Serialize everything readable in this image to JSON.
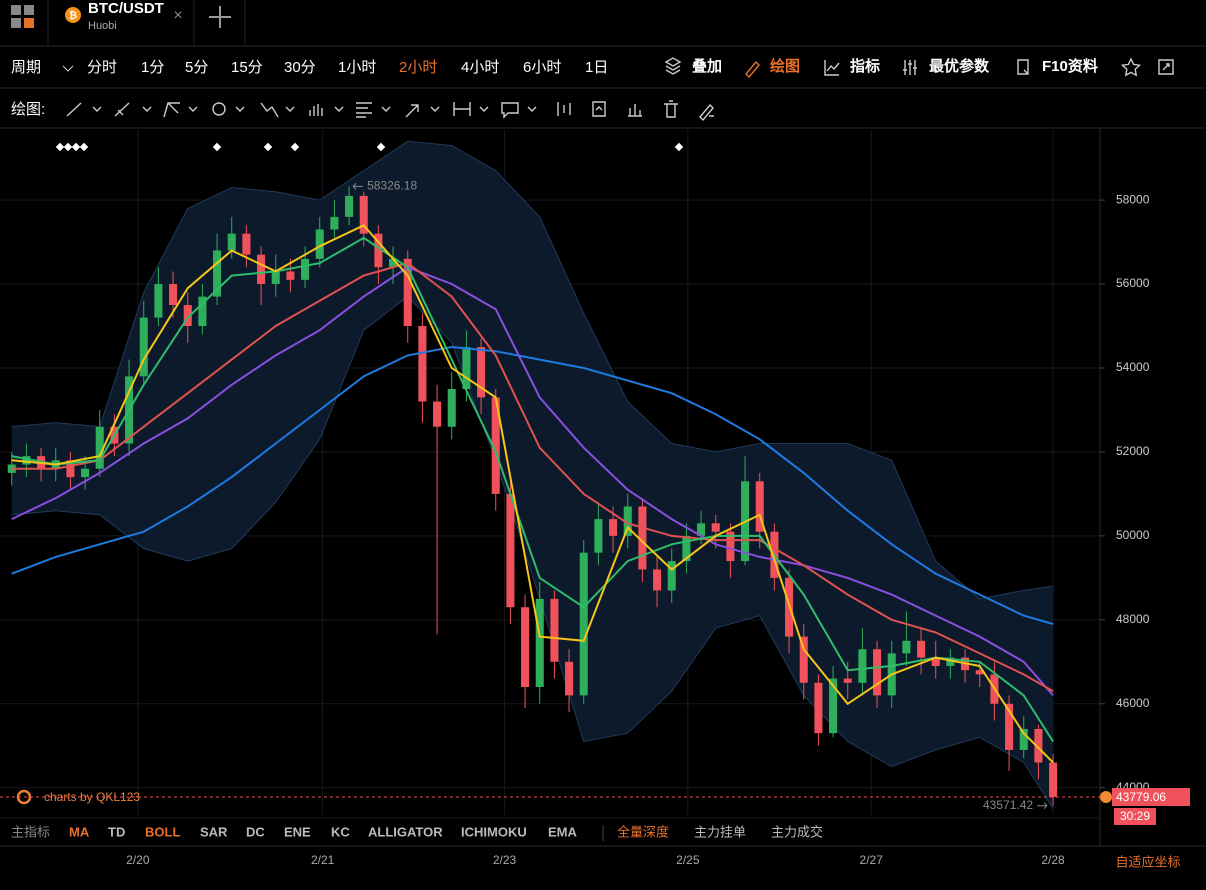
{
  "header": {
    "tab_title": "BTC/USDT",
    "tab_subtitle": "Huobi"
  },
  "toolbar": {
    "period_label": "周期",
    "periods": [
      "分时",
      "1分",
      "5分",
      "15分",
      "30分",
      "1小时",
      "2小时",
      "4小时",
      "6小时",
      "1日"
    ],
    "active_period": 6,
    "tools": [
      "叠加",
      "绘图",
      "指标",
      "最优参数",
      "F10资料"
    ],
    "active_tool": 1
  },
  "drawing_label": "绘图:",
  "indicator_bar": {
    "label": "主指标",
    "items": [
      "MA",
      "TD",
      "BOLL",
      "SAR",
      "DC",
      "ENE",
      "KC",
      "ALLIGATOR",
      "ICHIMOKU",
      "EMA"
    ],
    "active": [
      0,
      2
    ],
    "extra": [
      "全量深度",
      "主力挂单",
      "主力成交"
    ],
    "extra_active": 0
  },
  "chart_data": {
    "type": "candlestick",
    "watermark": "charts by QKL123",
    "countdown": "30:29",
    "axis_button": "自适应坐标",
    "xlim": [
      -0.8,
      74.2
    ],
    "xticks": [
      {
        "value": 8.6,
        "label": "2/20"
      },
      {
        "value": 21.2,
        "label": "2/21"
      },
      {
        "value": 33.6,
        "label": "2/23"
      },
      {
        "value": 46.1,
        "label": "2/25"
      },
      {
        "value": 58.6,
        "label": "2/27"
      },
      {
        "value": 71,
        "label": "2/28"
      }
    ],
    "ylim": [
      43350,
      59670
    ],
    "yticks": [
      44000,
      46000,
      48000,
      50000,
      52000,
      54000,
      56000,
      58000
    ],
    "grid": true,
    "up_color": "#2fae5c",
    "down_color": "#f0515a",
    "candles": {
      "x": [
        0,
        1,
        2,
        3,
        4,
        5,
        6,
        7,
        8,
        9,
        10,
        11,
        12,
        13,
        14,
        15,
        16,
        17,
        18,
        19,
        20,
        21,
        22,
        23,
        24,
        25,
        26,
        27,
        28,
        29,
        30,
        31,
        32,
        33,
        34,
        35,
        36,
        37,
        38,
        39,
        40,
        41,
        42,
        43,
        44,
        45,
        46,
        47,
        48,
        49,
        50,
        51,
        52,
        53,
        54,
        55,
        56,
        57,
        58,
        59,
        60,
        61,
        62,
        63,
        64,
        65,
        66,
        67,
        68,
        69,
        70,
        71
      ],
      "open": [
        51500,
        51700,
        51900,
        51600,
        51800,
        51400,
        51600,
        52600,
        52200,
        53800,
        55200,
        56000,
        55500,
        55000,
        55700,
        56800,
        57200,
        56700,
        56000,
        56300,
        56100,
        56600,
        57300,
        57600,
        58100,
        57200,
        56400,
        56600,
        55000,
        53200,
        52600,
        53500,
        54500,
        53300,
        51000,
        48300,
        46400,
        48500,
        47000,
        46200,
        49600,
        50400,
        50000,
        50700,
        49200,
        48700,
        49400,
        50000,
        50300,
        50100,
        49400,
        51300,
        50100,
        49000,
        47600,
        46500,
        45300,
        46600,
        46500,
        47300,
        46200,
        47200,
        47500,
        47100,
        46900,
        47100,
        46800,
        46700,
        46000,
        44900,
        45400,
        44600
      ],
      "high": [
        52000,
        52200,
        52100,
        52100,
        52000,
        51900,
        53000,
        52900,
        54200,
        55600,
        56400,
        56300,
        55800,
        56000,
        57200,
        57600,
        57400,
        56900,
        56700,
        56600,
        56900,
        57600,
        58000,
        58326.18,
        58200,
        57400,
        56900,
        56800,
        55300,
        53600,
        53900,
        54900,
        54700,
        53500,
        51300,
        48600,
        48900,
        48700,
        47300,
        49900,
        50800,
        50700,
        51000,
        50900,
        49500,
        49700,
        50300,
        50600,
        50500,
        50300,
        51900,
        51500,
        50300,
        49200,
        47900,
        46700,
        46900,
        47000,
        47800,
        47500,
        47500,
        48200,
        47800,
        47500,
        47300,
        47300,
        47000,
        47000,
        46200,
        45700,
        45500,
        44800
      ],
      "low": [
        51200,
        51400,
        51300,
        51300,
        51100,
        51100,
        51400,
        51900,
        51900,
        53600,
        55000,
        55200,
        54600,
        54800,
        55500,
        56600,
        56400,
        55500,
        55700,
        55800,
        55900,
        56400,
        57100,
        57400,
        56900,
        56000,
        56000,
        54600,
        52700,
        47650,
        52300,
        53200,
        52900,
        50600,
        47900,
        45900,
        46000,
        46600,
        45800,
        46000,
        49300,
        49600,
        49700,
        48900,
        48300,
        48400,
        49100,
        49800,
        49700,
        49000,
        49300,
        49700,
        48700,
        47200,
        46100,
        45000,
        45200,
        46100,
        46200,
        45900,
        45900,
        46900,
        46700,
        46600,
        46600,
        46500,
        46400,
        45600,
        44400,
        44700,
        44200,
        43571.42
      ],
      "close": [
        51700,
        51900,
        51600,
        51800,
        51400,
        51600,
        52600,
        52200,
        53800,
        55200,
        56000,
        55500,
        55000,
        55700,
        56800,
        57200,
        56700,
        56000,
        56300,
        56100,
        56600,
        57300,
        57600,
        58100,
        57200,
        56400,
        56600,
        55000,
        53200,
        52600,
        53500,
        54500,
        53300,
        51000,
        48300,
        46400,
        48500,
        47000,
        46200,
        49600,
        50400,
        50000,
        50700,
        49200,
        48700,
        49400,
        50000,
        50300,
        50100,
        49400,
        51300,
        50100,
        49000,
        47600,
        46500,
        45300,
        46600,
        46500,
        47300,
        46200,
        47200,
        47500,
        47100,
        46900,
        47100,
        46800,
        46700,
        46000,
        44900,
        45400,
        44600,
        43779.06
      ]
    },
    "x": [
      0,
      3,
      6,
      9,
      12,
      15,
      18,
      21,
      24,
      27,
      30,
      33,
      36,
      39,
      42,
      45,
      48,
      51,
      54,
      57,
      60,
      63,
      66,
      69,
      71
    ],
    "band": {
      "color": "#0c1a2b",
      "edge_color": "#1f3a5a",
      "upper": [
        52600,
        52700,
        52600,
        55800,
        57800,
        58300,
        58200,
        58000,
        58700,
        59400,
        59300,
        58700,
        57600,
        55300,
        53200,
        52200,
        52000,
        52200,
        52200,
        52200,
        51800,
        49400,
        48500,
        48700,
        48800
      ],
      "lower": [
        50500,
        50600,
        50500,
        49700,
        49400,
        49700,
        50800,
        52300,
        54900,
        55700,
        54600,
        51800,
        48500,
        45100,
        45300,
        46300,
        47800,
        48100,
        46200,
        45100,
        44500,
        44900,
        45200,
        44600,
        43500
      ]
    },
    "series": [
      {
        "color": "#1e7be0",
        "values": [
          49100,
          49500,
          49800,
          50100,
          50700,
          51400,
          52200,
          53000,
          53800,
          54300,
          54500,
          54400,
          54200,
          54000,
          53700,
          53400,
          52900,
          52300,
          51500,
          50600,
          49800,
          49100,
          48600,
          48100,
          47900
        ]
      },
      {
        "color": "#8a4fe0",
        "values": [
          50400,
          50900,
          51500,
          52200,
          52800,
          53600,
          54300,
          54900,
          55700,
          56400,
          56000,
          55400,
          53300,
          52100,
          51100,
          50400,
          49800,
          49500,
          49300,
          49000,
          48600,
          48100,
          47600,
          47000,
          46200
        ]
      },
      {
        "color": "#e0524f",
        "values": [
          51600,
          51600,
          51800,
          52600,
          53400,
          54200,
          55000,
          55600,
          56200,
          56500,
          55700,
          54300,
          52100,
          51000,
          50300,
          50000,
          49900,
          49900,
          49300,
          48600,
          48000,
          47700,
          47200,
          46700,
          46300
        ]
      },
      {
        "color": "#2ebd6b",
        "values": [
          51900,
          51700,
          51800,
          53600,
          55200,
          56200,
          56300,
          56500,
          57100,
          56400,
          54200,
          52000,
          49000,
          48300,
          49400,
          49800,
          50000,
          50000,
          48600,
          46800,
          46900,
          47100,
          47000,
          46200,
          45100
        ]
      },
      {
        "color": "#f5c518",
        "values": [
          51800,
          51700,
          51900,
          54200,
          55900,
          56800,
          56300,
          56900,
          57400,
          56200,
          54000,
          53300,
          47600,
          47500,
          50200,
          49200,
          50000,
          50500,
          47300,
          46000,
          46700,
          47100,
          46900,
          45300,
          44600
        ]
      }
    ]
  }
}
